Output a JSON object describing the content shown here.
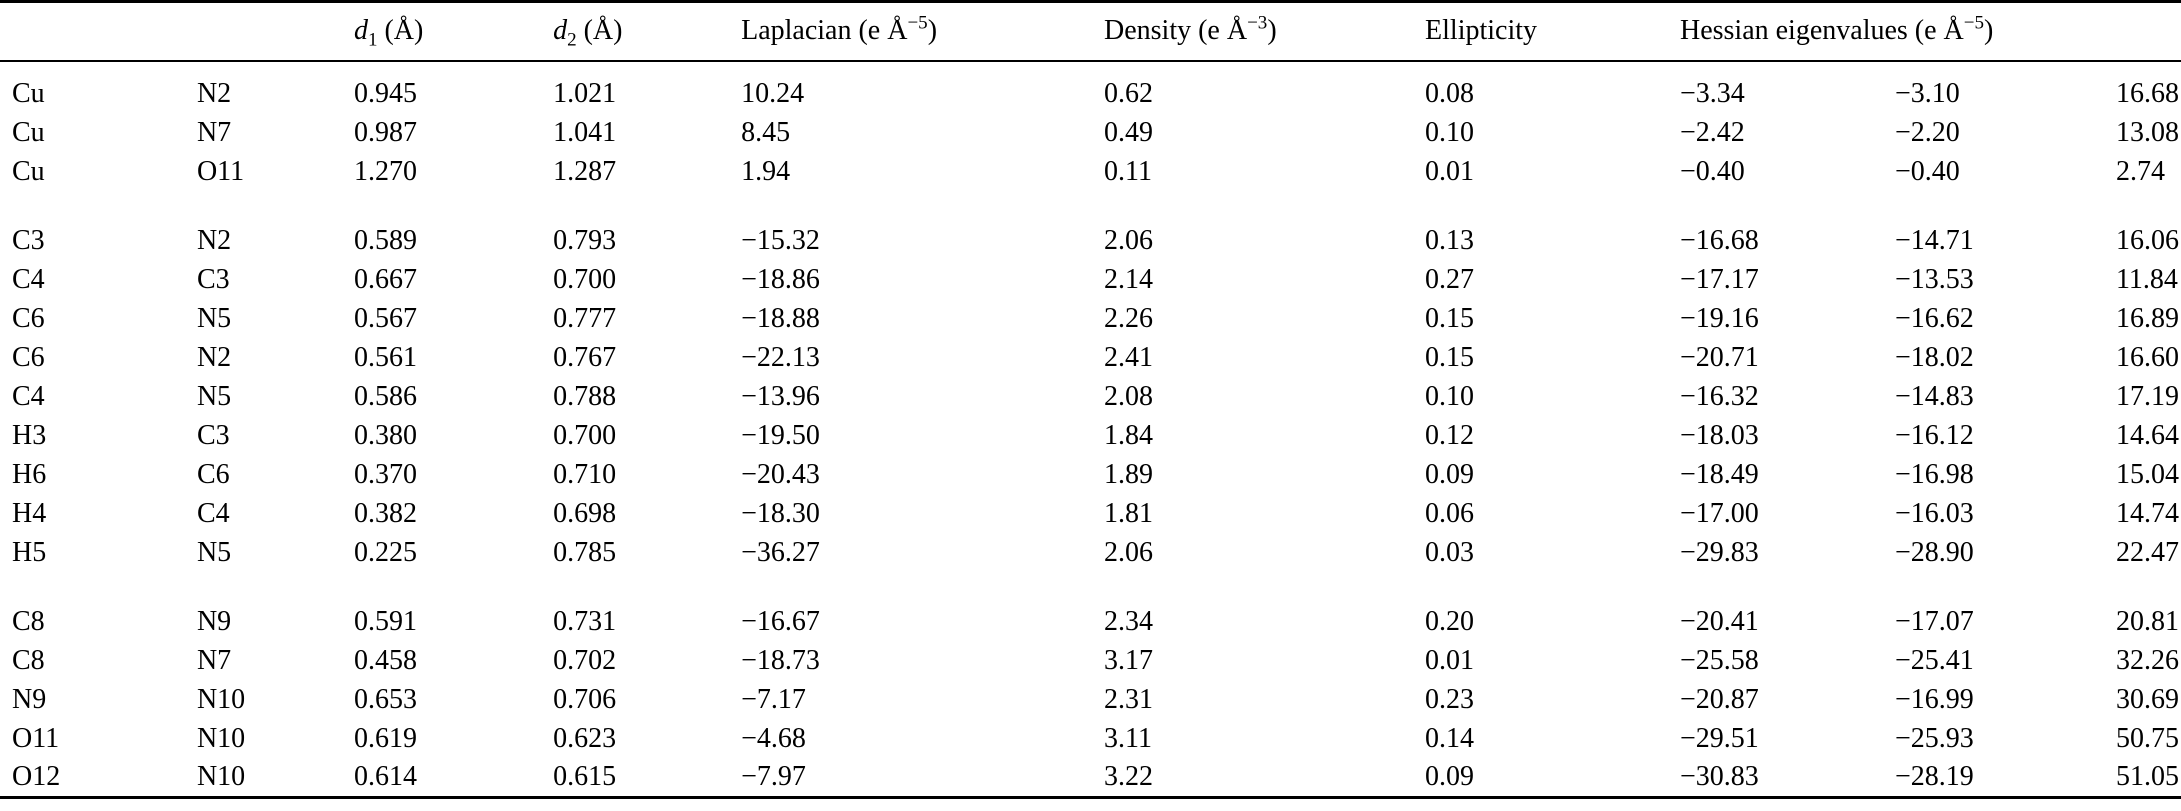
{
  "colors": {
    "background": "#ffffff",
    "text": "#000000",
    "rule": "#000000"
  },
  "table": {
    "header": {
      "atom1": "",
      "atom2": "",
      "d1": {
        "base": "d",
        "sub": "1",
        "unit": " (Å)"
      },
      "d2": {
        "base": "d",
        "sub": "2",
        "unit": " (Å)"
      },
      "laplacian": {
        "pre": "Laplacian (e Å",
        "sup": "−5",
        "post": ")"
      },
      "density": {
        "pre": "Density (e Å",
        "sup": "−3",
        "post": ")"
      },
      "ellipticity": "Ellipticity",
      "hessian": {
        "pre": "Hessian eigenvalues (e Å",
        "sup": "−5",
        "post": ")"
      }
    },
    "groups": [
      {
        "rows": [
          [
            "Cu",
            "N2",
            "0.945",
            "1.021",
            "10.24",
            "0.62",
            "0.08",
            "−3.34",
            "−3.10",
            "16.68"
          ],
          [
            "Cu",
            "N7",
            "0.987",
            "1.041",
            "8.45",
            "0.49",
            "0.10",
            "−2.42",
            "−2.20",
            "13.08"
          ],
          [
            "Cu",
            "O11",
            "1.270",
            "1.287",
            "1.94",
            "0.11",
            "0.01",
            "−0.40",
            "−0.40",
            "2.74"
          ]
        ]
      },
      {
        "rows": [
          [
            "C3",
            "N2",
            "0.589",
            "0.793",
            "−15.32",
            "2.06",
            "0.13",
            "−16.68",
            "−14.71",
            "16.06"
          ],
          [
            "C4",
            "C3",
            "0.667",
            "0.700",
            "−18.86",
            "2.14",
            "0.27",
            "−17.17",
            "−13.53",
            "11.84"
          ],
          [
            "C6",
            "N5",
            "0.567",
            "0.777",
            "−18.88",
            "2.26",
            "0.15",
            "−19.16",
            "−16.62",
            "16.89"
          ],
          [
            "C6",
            "N2",
            "0.561",
            "0.767",
            "−22.13",
            "2.41",
            "0.15",
            "−20.71",
            "−18.02",
            "16.60"
          ],
          [
            "C4",
            "N5",
            "0.586",
            "0.788",
            "−13.96",
            "2.08",
            "0.10",
            "−16.32",
            "−14.83",
            "17.19"
          ],
          [
            "H3",
            "C3",
            "0.380",
            "0.700",
            "−19.50",
            "1.84",
            "0.12",
            "−18.03",
            "−16.12",
            "14.64"
          ],
          [
            "H6",
            "C6",
            "0.370",
            "0.710",
            "−20.43",
            "1.89",
            "0.09",
            "−18.49",
            "−16.98",
            "15.04"
          ],
          [
            "H4",
            "C4",
            "0.382",
            "0.698",
            "−18.30",
            "1.81",
            "0.06",
            "−17.00",
            "−16.03",
            "14.74"
          ],
          [
            "H5",
            "N5",
            "0.225",
            "0.785",
            "−36.27",
            "2.06",
            "0.03",
            "−29.83",
            "−28.90",
            "22.47"
          ]
        ]
      },
      {
        "rows": [
          [
            "C8",
            "N9",
            "0.591",
            "0.731",
            "−16.67",
            "2.34",
            "0.20",
            "−20.41",
            "−17.07",
            "20.81"
          ],
          [
            "C8",
            "N7",
            "0.458",
            "0.702",
            "−18.73",
            "3.17",
            "0.01",
            "−25.58",
            "−25.41",
            "32.26"
          ],
          [
            "N9",
            "N10",
            "0.653",
            "0.706",
            "−7.17",
            "2.31",
            "0.23",
            "−20.87",
            "−16.99",
            "30.69"
          ],
          [
            "O11",
            "N10",
            "0.619",
            "0.623",
            "−4.68",
            "3.11",
            "0.14",
            "−29.51",
            "−25.93",
            "50.75"
          ],
          [
            "O12",
            "N10",
            "0.614",
            "0.615",
            "−7.97",
            "3.22",
            "0.09",
            "−30.83",
            "−28.19",
            "51.05"
          ]
        ]
      }
    ]
  }
}
